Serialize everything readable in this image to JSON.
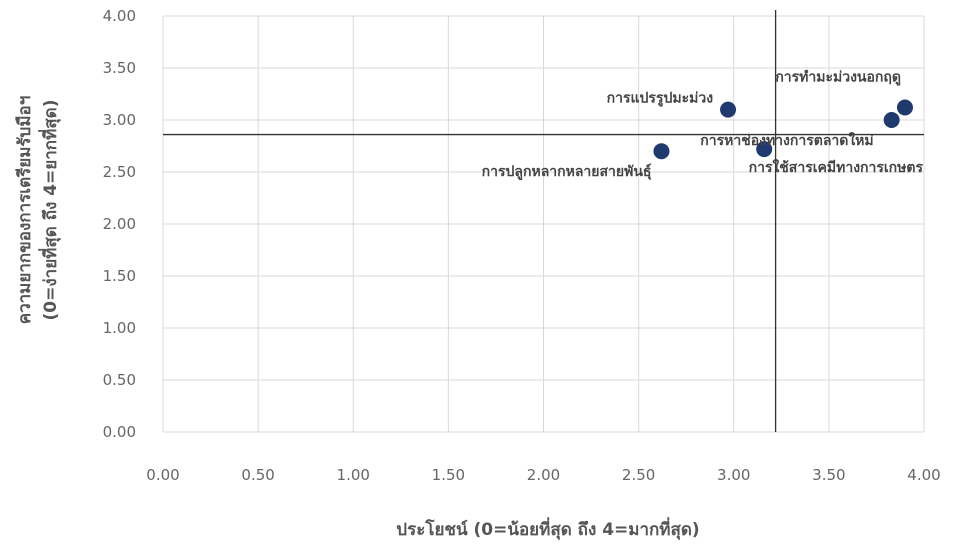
{
  "chart_data": {
    "type": "scatter",
    "xlabel": "ประโยชน์ (0=น้อยที่สุด ถึง 4=มากที่สุด)",
    "ylabel_line1": "ความยากของการเตรียมรับมือฯ",
    "ylabel_line2": "(0=ง่ายที่สุด ถึง 4=ยากที่สุด)",
    "xlim": [
      0,
      4
    ],
    "ylim": [
      0,
      4
    ],
    "x_ticks": [
      "0.00",
      "0.50",
      "1.00",
      "1.50",
      "2.00",
      "2.50",
      "3.00",
      "3.50",
      "4.00"
    ],
    "y_ticks": [
      "0.00",
      "0.50",
      "1.00",
      "1.50",
      "2.00",
      "2.50",
      "3.00",
      "3.50",
      "4.00"
    ],
    "grid": true,
    "marker_color": "#1f3a6e",
    "reference_lines": {
      "x": 3.22,
      "y": 2.86
    },
    "points": [
      {
        "label": "การแปรรูปมะม่วง",
        "x": 2.97,
        "y": 3.1
      },
      {
        "label": "การทำมะม่วงนอกฤดู",
        "x": 3.9,
        "y": 3.12
      },
      {
        "label": "การหาช่องทางการตลาดใหม่",
        "x": 3.83,
        "y": 3.0
      },
      {
        "label": "การปลูกหลากหลายสายพันธุ์",
        "x": 2.62,
        "y": 2.7
      },
      {
        "label": "การใช้สารเคมีทางการเกษตร",
        "x": 3.16,
        "y": 2.72
      }
    ]
  }
}
